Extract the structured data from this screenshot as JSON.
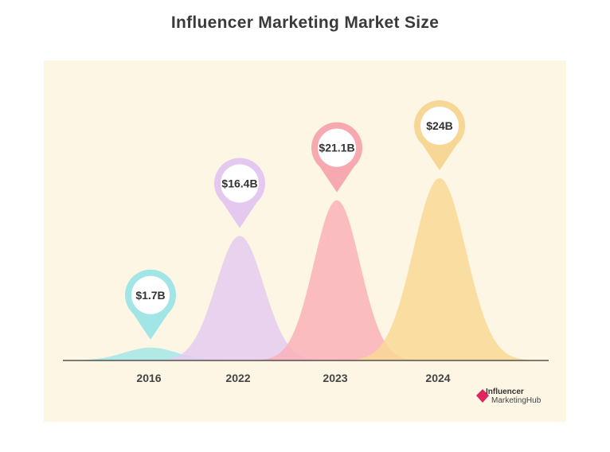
{
  "chart_data": {
    "type": "area",
    "title": "Influencer Marketing Market Size",
    "categories": [
      "2016",
      "2022",
      "2023",
      "2024"
    ],
    "values": [
      1.7,
      16.4,
      21.1,
      24
    ],
    "value_labels": [
      "$1.7B",
      "$16.4B",
      "$21.1B",
      "$24B"
    ],
    "colors": [
      "#a5e6e8",
      "#e5cbee",
      "#f9b2b8",
      "#f8d895"
    ],
    "pin_colors": [
      "#a2e5e7",
      "#e5c8ef",
      "#f7a9b1",
      "#f7d795"
    ],
    "ylim": [
      0,
      24
    ],
    "grid": false
  },
  "watermark": {
    "line1": "Influencer",
    "line2": "MarketingHub"
  },
  "colors": {
    "panel_bg": "#fdf6e5",
    "axis": "#333333"
  }
}
